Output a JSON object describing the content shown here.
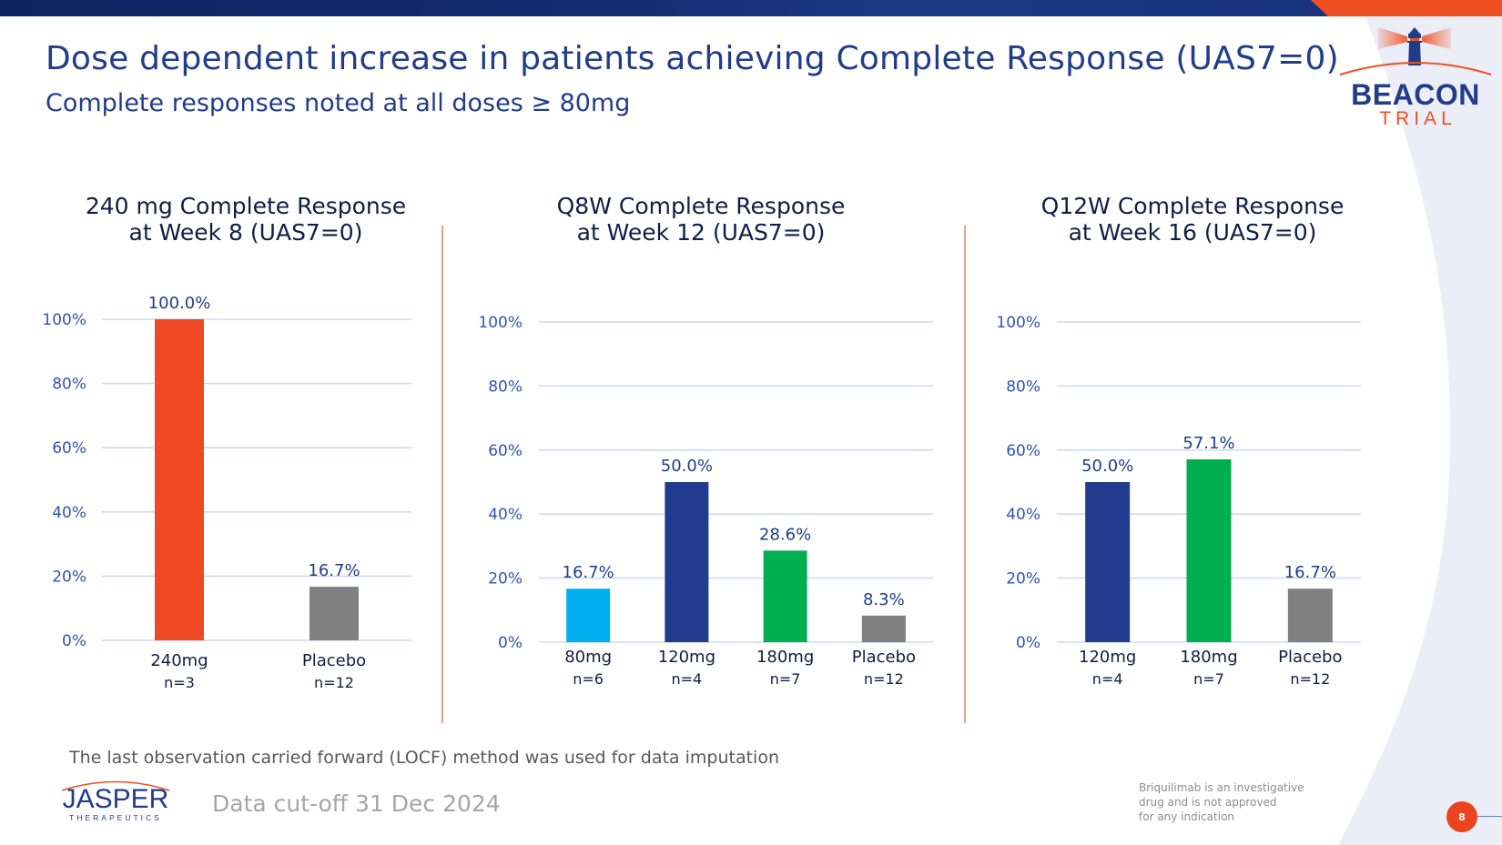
{
  "header": {
    "title": "Dose dependent increase in patients achieving Complete Response (UAS7=0)",
    "subtitle": "Complete responses noted at all doses ≥ 80mg"
  },
  "logo": {
    "beacon": "BEACON",
    "trial": "TRIAL"
  },
  "colors": {
    "navy": "#213c8a",
    "orange": "#f04e23",
    "light_blue": "#00b0f0",
    "dark_blue": "#1f3c8f",
    "green": "#00b050",
    "gray": "#808080",
    "gridline": "#d0dbef"
  },
  "chart_data": [
    {
      "type": "bar",
      "title_line1": "240 mg Complete Response",
      "title_line2": "at Week 8 (UAS7=0)",
      "categories": [
        "240mg",
        "Placebo"
      ],
      "n_labels": [
        "n=3",
        "n=12"
      ],
      "values": [
        100.0,
        16.7
      ],
      "data_labels": [
        "100.0%",
        "16.7%"
      ],
      "bar_colors": [
        "#ee4923",
        "#808080"
      ],
      "yticks": [
        "0%",
        "20%",
        "40%",
        "60%",
        "80%",
        "100%"
      ],
      "ylim": [
        0,
        100
      ],
      "grid": true,
      "xlabel": "",
      "ylabel": ""
    },
    {
      "type": "bar",
      "title_line1": "Q8W Complete Response",
      "title_line2": "at Week 12 (UAS7=0)",
      "categories": [
        "80mg",
        "120mg",
        "180mg",
        "Placebo"
      ],
      "n_labels": [
        "n=6",
        "n=4",
        "n=7",
        "n=12"
      ],
      "values": [
        16.7,
        50.0,
        28.6,
        8.3
      ],
      "data_labels": [
        "16.7%",
        "50.0%",
        "28.6%",
        "8.3%"
      ],
      "bar_colors": [
        "#00b0f0",
        "#213c8f",
        "#00b050",
        "#808080"
      ],
      "yticks": [
        "0%",
        "20%",
        "40%",
        "60%",
        "80%",
        "100%"
      ],
      "ylim": [
        0,
        100
      ],
      "grid": true,
      "xlabel": "",
      "ylabel": ""
    },
    {
      "type": "bar",
      "title_line1": "Q12W Complete Response",
      "title_line2": "at Week 16 (UAS7=0)",
      "categories": [
        "120mg",
        "180mg",
        "Placebo"
      ],
      "n_labels": [
        "n=4",
        "n=7",
        "n=12"
      ],
      "values": [
        50.0,
        57.1,
        16.7
      ],
      "data_labels": [
        "50.0%",
        "57.1%",
        "16.7%"
      ],
      "bar_colors": [
        "#213c8f",
        "#00b050",
        "#808080"
      ],
      "yticks": [
        "0%",
        "20%",
        "40%",
        "60%",
        "80%",
        "100%"
      ],
      "ylim": [
        0,
        100
      ],
      "grid": true,
      "xlabel": "",
      "ylabel": ""
    }
  ],
  "footer": {
    "footnote": "The last observation carried forward (LOCF) method was used for data imputation",
    "cutoff": "Data cut-off 31 Dec 2024",
    "company": "JASPER",
    "company_sub": "THERAPEUTICS",
    "disclaimer_line1": "Briquilimab is an investigative",
    "disclaimer_line2": "drug and is not approved",
    "disclaimer_line3": "for any indication",
    "page_number": "8"
  }
}
